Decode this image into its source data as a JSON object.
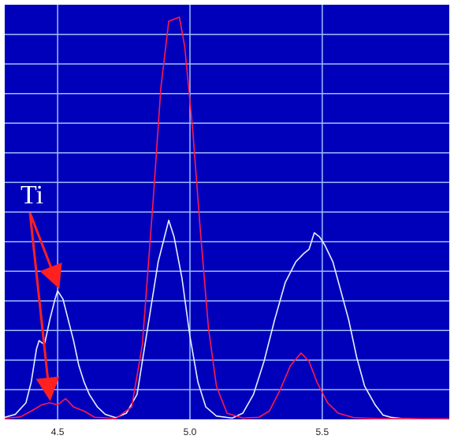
{
  "chart_data": {
    "type": "line",
    "xlim": [
      4.3,
      5.98
    ],
    "ylim": [
      0,
      100
    ],
    "x_ticks": [
      4.5,
      5.0,
      5.5
    ],
    "x_tick_labels": [
      "4.5",
      "5.0",
      "5.5"
    ],
    "grid": true,
    "plot_background": "#0000bb",
    "grid_color": "#9ec0ff",
    "annotation": {
      "text": "Ti",
      "color": "#ffffff",
      "arrow_color": "#ff2020",
      "points_to": [
        [
          4.5,
          31
        ],
        [
          4.47,
          4
        ]
      ]
    },
    "series": [
      {
        "color": "#e8f0ff",
        "points": [
          [
            4.3,
            0.5
          ],
          [
            4.34,
            1.2
          ],
          [
            4.38,
            4
          ],
          [
            4.4,
            9
          ],
          [
            4.42,
            17
          ],
          [
            4.43,
            19
          ],
          [
            4.45,
            18
          ],
          [
            4.47,
            24
          ],
          [
            4.49,
            29
          ],
          [
            4.5,
            31
          ],
          [
            4.52,
            29
          ],
          [
            4.54,
            24
          ],
          [
            4.56,
            19
          ],
          [
            4.58,
            13
          ],
          [
            4.6,
            9
          ],
          [
            4.62,
            6
          ],
          [
            4.65,
            3
          ],
          [
            4.68,
            1.2
          ],
          [
            4.72,
            0.4
          ],
          [
            4.76,
            1.5
          ],
          [
            4.8,
            6
          ],
          [
            4.84,
            22
          ],
          [
            4.88,
            38
          ],
          [
            4.92,
            48
          ],
          [
            4.94,
            44
          ],
          [
            4.97,
            34
          ],
          [
            5.0,
            20
          ],
          [
            5.03,
            9
          ],
          [
            5.06,
            3
          ],
          [
            5.1,
            0.8
          ],
          [
            5.16,
            0.3
          ],
          [
            5.2,
            1.5
          ],
          [
            5.24,
            6
          ],
          [
            5.28,
            14
          ],
          [
            5.32,
            24
          ],
          [
            5.36,
            33
          ],
          [
            5.4,
            38
          ],
          [
            5.43,
            40
          ],
          [
            5.45,
            41
          ],
          [
            5.47,
            45
          ],
          [
            5.49,
            44
          ],
          [
            5.51,
            42
          ],
          [
            5.54,
            38
          ],
          [
            5.57,
            31
          ],
          [
            5.6,
            24
          ],
          [
            5.63,
            15
          ],
          [
            5.66,
            8
          ],
          [
            5.7,
            3.5
          ],
          [
            5.73,
            1
          ],
          [
            5.76,
            0.5
          ],
          [
            5.8,
            0.2
          ],
          [
            5.9,
            0.1
          ],
          [
            5.98,
            0.1
          ]
        ]
      },
      {
        "color": "#ff1a4a",
        "points": [
          [
            4.3,
            0.2
          ],
          [
            4.36,
            0.6
          ],
          [
            4.4,
            2
          ],
          [
            4.44,
            3.5
          ],
          [
            4.47,
            4
          ],
          [
            4.5,
            3.5
          ],
          [
            4.53,
            5
          ],
          [
            4.56,
            3
          ],
          [
            4.6,
            2
          ],
          [
            4.64,
            0.5
          ],
          [
            4.72,
            0.2
          ],
          [
            4.78,
            3
          ],
          [
            4.82,
            18
          ],
          [
            4.86,
            52
          ],
          [
            4.89,
            80
          ],
          [
            4.92,
            96
          ],
          [
            4.96,
            97
          ],
          [
            4.98,
            90
          ],
          [
            5.01,
            70
          ],
          [
            5.04,
            45
          ],
          [
            5.07,
            22
          ],
          [
            5.1,
            8
          ],
          [
            5.14,
            1.5
          ],
          [
            5.2,
            0.3
          ],
          [
            5.26,
            0.5
          ],
          [
            5.3,
            2
          ],
          [
            5.34,
            7
          ],
          [
            5.38,
            13
          ],
          [
            5.42,
            16
          ],
          [
            5.45,
            14
          ],
          [
            5.48,
            9
          ],
          [
            5.52,
            4
          ],
          [
            5.56,
            1.5
          ],
          [
            5.62,
            0.4
          ],
          [
            5.7,
            0.2
          ],
          [
            5.98,
            0.1
          ]
        ]
      }
    ]
  }
}
